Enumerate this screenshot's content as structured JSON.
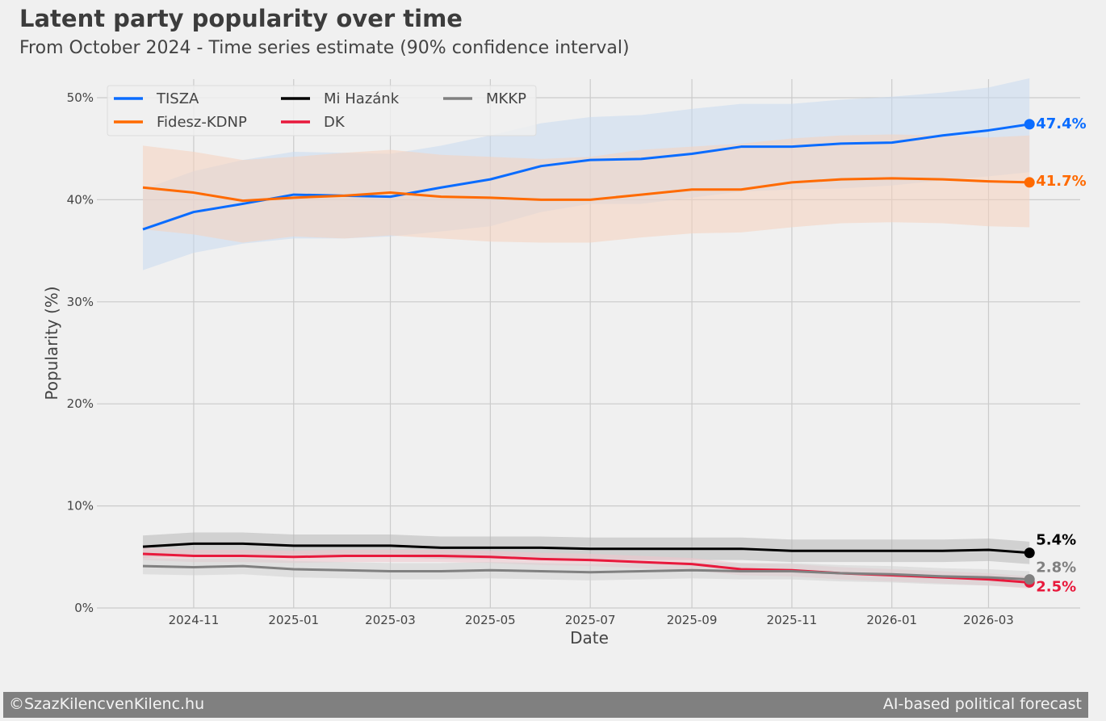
{
  "header": {
    "title": "Latent party popularity over time",
    "subtitle": "From October 2024 - Time series estimate (90% confidence interval)"
  },
  "footer": {
    "left": "©SzazKilencvenKilenc.hu",
    "right": "AI-based political forecast"
  },
  "chart_data": {
    "type": "line",
    "xlabel": "Date",
    "ylabel": "Popularity (%)",
    "ylim": [
      0,
      52
    ],
    "yticks": [
      0,
      10,
      20,
      30,
      40,
      50
    ],
    "ytick_labels": [
      "0%",
      "10%",
      "20%",
      "30%",
      "40%",
      "50%"
    ],
    "xticks": [
      "2024-11-01",
      "2025-01-01",
      "2025-03-01",
      "2025-05-01",
      "2025-07-01",
      "2025-09-01",
      "2025-11-01",
      "2026-01-01",
      "2026-03-01"
    ],
    "xtick_labels": [
      "2024-11",
      "2025-01",
      "2025-03",
      "2025-05",
      "2025-07",
      "2025-09",
      "2025-11",
      "2026-01",
      "2026-03"
    ],
    "xlim": [
      "2024-08-25",
      "2026-05-01"
    ],
    "grid": true,
    "legend_position": "top-left",
    "band": "90% confidence interval",
    "x": [
      "2024-10-01",
      "2024-11-01",
      "2024-12-01",
      "2025-01-01",
      "2025-02-01",
      "2025-03-01",
      "2025-04-01",
      "2025-05-01",
      "2025-06-01",
      "2025-07-01",
      "2025-08-01",
      "2025-09-01",
      "2025-10-01",
      "2025-11-01",
      "2025-12-01",
      "2026-01-01",
      "2026-02-01",
      "2026-03-01",
      "2026-03-26"
    ],
    "series": [
      {
        "name": "TISZA",
        "color": "#0a6cff",
        "band_color": "#c9daf0",
        "end_label": "47.4%",
        "values": [
          37.1,
          38.8,
          39.6,
          40.5,
          40.4,
          40.3,
          41.2,
          42.0,
          43.3,
          43.9,
          44.0,
          44.5,
          45.2,
          45.2,
          45.5,
          45.6,
          46.3,
          46.8,
          47.4
        ],
        "lower": [
          33.1,
          34.8,
          35.7,
          36.2,
          36.2,
          36.4,
          36.9,
          37.4,
          38.8,
          39.6,
          39.6,
          40.2,
          40.8,
          41.0,
          41.1,
          41.4,
          41.9,
          42.3,
          42.7
        ],
        "upper": [
          41.0,
          42.8,
          43.9,
          44.7,
          44.6,
          44.5,
          45.3,
          46.3,
          47.5,
          48.1,
          48.3,
          48.9,
          49.4,
          49.4,
          49.8,
          50.1,
          50.5,
          51.0,
          51.9
        ]
      },
      {
        "name": "Fidesz-KDNP",
        "color": "#ff6a00",
        "band_color": "#f5d2bd",
        "end_label": "41.7%",
        "values": [
          41.2,
          40.7,
          39.9,
          40.2,
          40.4,
          40.7,
          40.3,
          40.2,
          40.0,
          40.0,
          40.5,
          41.0,
          41.0,
          41.7,
          42.0,
          42.1,
          42.0,
          41.8,
          41.7
        ],
        "lower": [
          37.1,
          36.6,
          35.8,
          36.4,
          36.2,
          36.5,
          36.2,
          35.9,
          35.8,
          35.8,
          36.3,
          36.7,
          36.8,
          37.3,
          37.7,
          37.8,
          37.7,
          37.4,
          37.3
        ],
        "upper": [
          45.3,
          44.7,
          43.9,
          44.2,
          44.6,
          44.9,
          44.4,
          44.2,
          44.0,
          44.2,
          44.9,
          45.2,
          45.5,
          46.0,
          46.3,
          46.4,
          46.3,
          46.1,
          46.3
        ]
      },
      {
        "name": "Mi Hazánk",
        "color": "#000000",
        "band_color": "#b8b8b8",
        "end_label": "5.4%",
        "values": [
          6.0,
          6.3,
          6.3,
          6.1,
          6.1,
          6.1,
          5.9,
          5.9,
          5.9,
          5.8,
          5.8,
          5.8,
          5.8,
          5.6,
          5.6,
          5.6,
          5.6,
          5.7,
          5.4
        ],
        "lower": [
          4.9,
          5.2,
          5.2,
          5.0,
          5.0,
          5.0,
          4.8,
          4.8,
          4.8,
          4.7,
          4.7,
          4.7,
          4.7,
          4.5,
          4.5,
          4.5,
          4.5,
          4.6,
          4.3
        ],
        "upper": [
          7.1,
          7.4,
          7.4,
          7.2,
          7.2,
          7.2,
          7.0,
          7.0,
          7.0,
          6.9,
          6.9,
          6.9,
          6.9,
          6.7,
          6.7,
          6.7,
          6.7,
          6.8,
          6.5
        ]
      },
      {
        "name": "DK",
        "color": "#e8193c",
        "band_color": "#f0c4cc",
        "end_label": "2.5%",
        "values": [
          5.3,
          5.1,
          5.1,
          5.0,
          5.1,
          5.1,
          5.1,
          5.0,
          4.8,
          4.7,
          4.5,
          4.3,
          3.8,
          3.7,
          3.4,
          3.2,
          3.0,
          2.8,
          2.5
        ],
        "lower": [
          4.7,
          4.5,
          4.5,
          4.4,
          4.5,
          4.5,
          4.5,
          4.4,
          4.2,
          4.1,
          3.9,
          3.7,
          3.2,
          3.1,
          2.8,
          2.6,
          2.4,
          2.2,
          1.9
        ],
        "upper": [
          5.9,
          5.7,
          5.7,
          5.6,
          5.7,
          5.7,
          5.7,
          5.6,
          5.4,
          5.3,
          5.1,
          4.9,
          4.4,
          4.3,
          4.0,
          3.8,
          3.6,
          3.4,
          3.1
        ]
      },
      {
        "name": "MKKP",
        "color": "#808080",
        "band_color": "#d2d2d2",
        "end_label": "2.8%",
        "values": [
          4.1,
          4.0,
          4.1,
          3.8,
          3.7,
          3.6,
          3.6,
          3.7,
          3.6,
          3.5,
          3.6,
          3.7,
          3.6,
          3.6,
          3.4,
          3.3,
          3.1,
          3.0,
          2.8
        ],
        "lower": [
          3.3,
          3.2,
          3.3,
          3.0,
          2.9,
          2.8,
          2.8,
          2.9,
          2.8,
          2.7,
          2.8,
          2.9,
          2.8,
          2.8,
          2.6,
          2.5,
          2.3,
          2.2,
          2.0
        ],
        "upper": [
          4.9,
          4.8,
          4.9,
          4.6,
          4.5,
          4.4,
          4.4,
          4.5,
          4.4,
          4.3,
          4.4,
          4.5,
          4.4,
          4.4,
          4.2,
          4.1,
          3.9,
          3.8,
          3.6
        ]
      }
    ]
  }
}
